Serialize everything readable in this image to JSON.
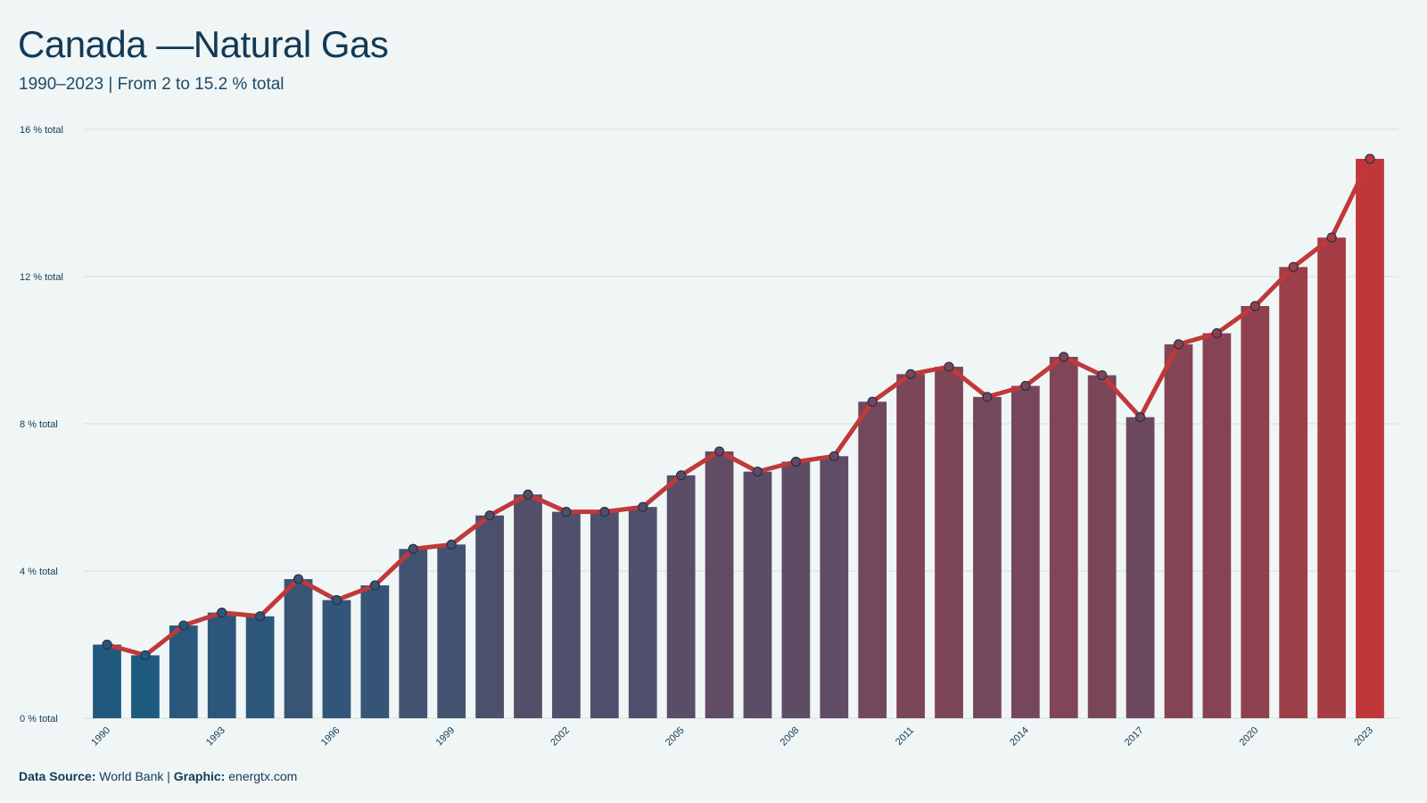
{
  "chart_data": {
    "type": "bar-line",
    "title": "Canada —Natural Gas",
    "subtitle": "1990–2023 | From 2 to 15.2 % total",
    "source_label": "Data Source:",
    "source": "World Bank",
    "graphic_label": "Graphic:",
    "graphic": "energtx.com",
    "categories": [
      "1990",
      null,
      null,
      "1993",
      null,
      null,
      "1996",
      null,
      null,
      "1999",
      null,
      null,
      "2002",
      null,
      null,
      "2005",
      null,
      null,
      "2008",
      null,
      null,
      "2011",
      null,
      null,
      "2014",
      null,
      null,
      "2017",
      null,
      null,
      "2020",
      null,
      null,
      "2023"
    ],
    "values": [
      2.0,
      1.71,
      2.52,
      2.87,
      2.77,
      3.78,
      3.21,
      3.61,
      4.6,
      4.72,
      5.51,
      6.08,
      5.61,
      5.61,
      5.74,
      6.6,
      7.25,
      6.7,
      6.97,
      7.12,
      8.6,
      9.35,
      9.55,
      8.73,
      9.03,
      9.82,
      9.32,
      8.18,
      10.16,
      10.46,
      11.2,
      12.26,
      13.06,
      15.2
    ],
    "color_low": "#1f5a80",
    "color_high": "#c0373a",
    "line_color": "#c0393a",
    "ylim": [
      0,
      16
    ],
    "yticks": [
      {
        "value": 0,
        "label": "0 % total"
      },
      {
        "value": 4,
        "label": "4 % total"
      },
      {
        "value": 8,
        "label": "8 % total"
      },
      {
        "value": 12,
        "label": "12 % total"
      },
      {
        "value": 16,
        "label": "16 % total"
      }
    ],
    "grid": true
  }
}
